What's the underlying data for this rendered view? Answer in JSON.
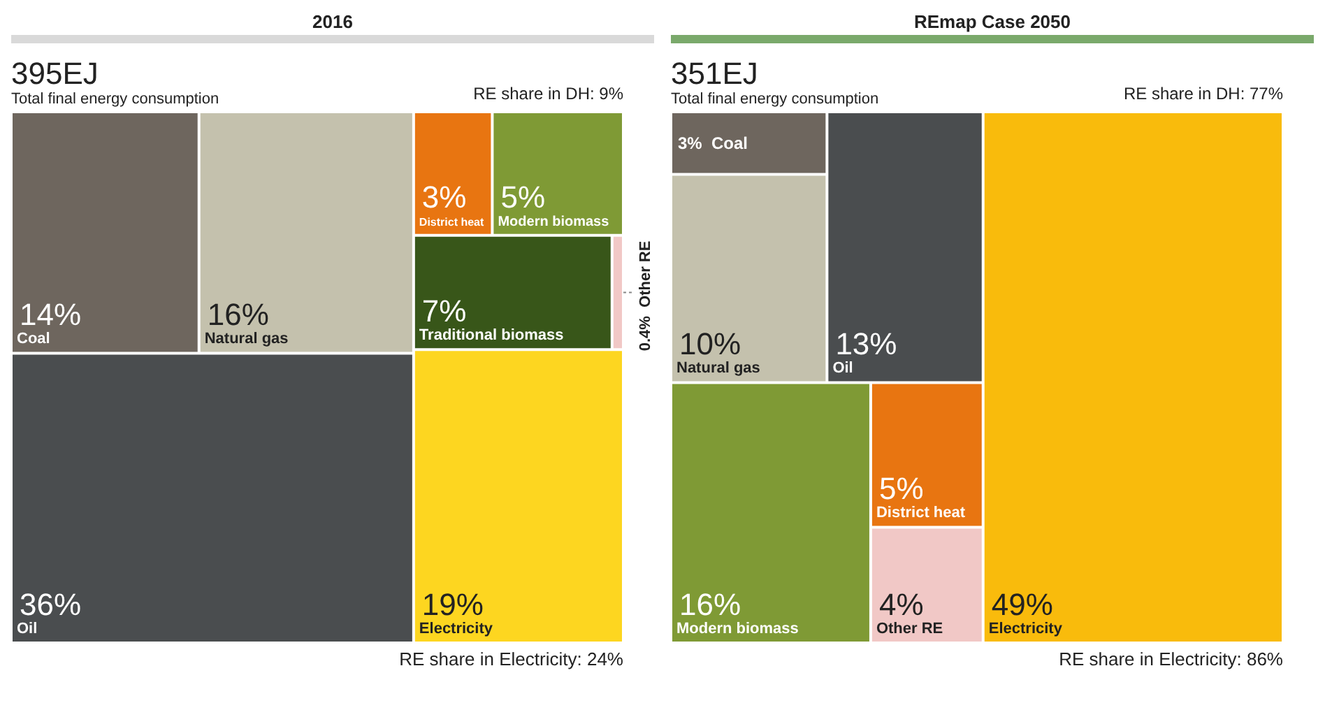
{
  "chart_data": [
    {
      "type": "other",
      "title": "2016",
      "categories": [
        "Coal",
        "Natural gas",
        "Oil",
        "District heat",
        "Modern biomass",
        "Traditional biomass",
        "Other RE",
        "Electricity"
      ],
      "values": [
        14,
        16,
        36,
        3,
        5,
        7,
        0.4,
        19
      ],
      "value_labels": [
        "14%",
        "16%",
        "36%",
        "3%",
        "5%",
        "7%",
        "0.4%",
        "19%"
      ],
      "colors": [
        "#6e665e",
        "#c4c1ad",
        "#4a4d4f",
        "#e87511",
        "#7f9a35",
        "#385619",
        "#f1c8c6",
        "#fdd620"
      ],
      "annotations": [
        "395EJ",
        "Total final energy consumption",
        "RE share in DH: 9%",
        "RE share in Electricity: 24%"
      ]
    },
    {
      "type": "other",
      "title": "REmap Case 2050",
      "categories": [
        "Coal",
        "Natural gas",
        "Oil",
        "Modern biomass",
        "District heat",
        "Other RE",
        "Electricity"
      ],
      "values": [
        3,
        10,
        13,
        16,
        5,
        4,
        49
      ],
      "value_labels": [
        "3%",
        "10%",
        "13%",
        "16%",
        "5%",
        "4%",
        "49%"
      ],
      "colors": [
        "#6e665e",
        "#c4c1ad",
        "#4a4d4f",
        "#7f9a35",
        "#e87511",
        "#f1c8c6",
        "#f9bb0c"
      ],
      "annotations": [
        "351EJ",
        "Total final energy consumption",
        "RE share in DH: 77%",
        "RE share in Electricity: 86%"
      ]
    }
  ]
}
